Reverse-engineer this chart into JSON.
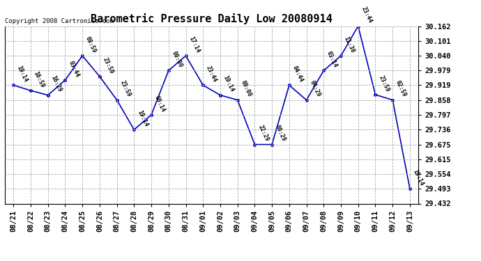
{
  "title": "Barometric Pressure Daily Low 20080914",
  "copyright": "Copyright 2008 Cartronics.com",
  "dates": [
    "08/21",
    "08/22",
    "08/23",
    "08/24",
    "08/25",
    "08/26",
    "08/27",
    "08/28",
    "08/29",
    "08/30",
    "08/31",
    "09/01",
    "09/02",
    "09/03",
    "09/04",
    "09/05",
    "09/06",
    "09/07",
    "09/08",
    "09/09",
    "09/10",
    "09/11",
    "09/12",
    "09/13"
  ],
  "values": [
    29.919,
    29.897,
    29.878,
    29.94,
    30.04,
    29.955,
    29.858,
    29.736,
    29.797,
    29.979,
    30.04,
    29.919,
    29.878,
    29.858,
    29.675,
    29.675,
    29.919,
    29.858,
    29.979,
    30.04,
    30.162,
    29.88,
    29.858,
    29.493
  ],
  "annotations": [
    "19:14",
    "16:59",
    "16:29",
    "03:44",
    "00:59",
    "23:59",
    "23:59",
    "19:14",
    "00:14",
    "00:00",
    "17:14",
    "23:44",
    "19:14",
    "00:00",
    "22:29",
    "00:29",
    "04:44",
    "04:29",
    "03:14",
    "11:30",
    "23:44",
    "23:59",
    "02:59",
    "19:14"
  ],
  "ylim": [
    29.432,
    30.162
  ],
  "yticks": [
    29.432,
    29.493,
    29.554,
    29.615,
    29.675,
    29.736,
    29.797,
    29.858,
    29.919,
    29.979,
    30.04,
    30.101,
    30.162
  ],
  "line_color": "#0000bb",
  "marker_color": "#0000bb",
  "bg_color": "#ffffff",
  "grid_color": "#aaaaaa",
  "title_fontsize": 11,
  "annotation_fontsize": 6.0,
  "tick_fontsize": 7.5,
  "copyright_fontsize": 6.5
}
